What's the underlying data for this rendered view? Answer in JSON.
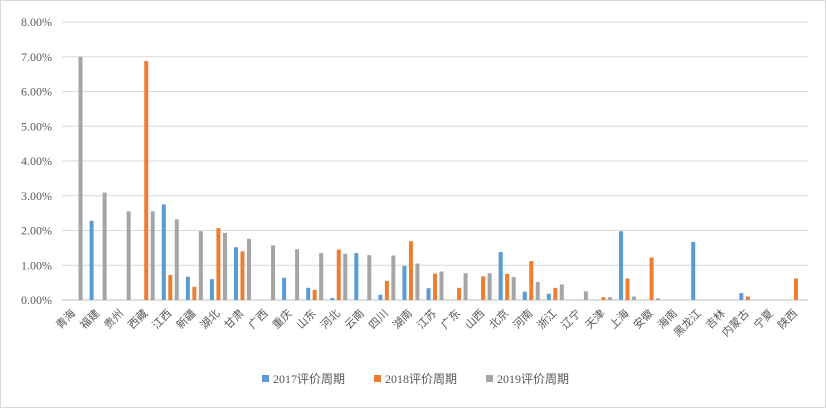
{
  "chart_data": {
    "type": "bar",
    "title": "",
    "xlabel": "",
    "ylabel": "",
    "ylim": [
      0,
      0.08
    ],
    "yticks": [
      "0.00%",
      "1.00%",
      "2.00%",
      "3.00%",
      "4.00%",
      "5.00%",
      "6.00%",
      "7.00%",
      "8.00%"
    ],
    "grid": true,
    "legend_position": "bottom",
    "categories": [
      "青海",
      "福建",
      "贵州",
      "西藏",
      "江西",
      "新疆",
      "湖北",
      "甘肃",
      "广西",
      "重庆",
      "山东",
      "河北",
      "云南",
      "四川",
      "湖南",
      "江苏",
      "广东",
      "山西",
      "北京",
      "河南",
      "浙江",
      "辽宁",
      "天津",
      "上海",
      "安徽",
      "海南",
      "黑龙江",
      "吉林",
      "内蒙古",
      "宁夏",
      "陕西"
    ],
    "series": [
      {
        "name": "2017评价周期",
        "color": "#5b9bd5",
        "values": [
          0,
          0.0228,
          0,
          0,
          0.0275,
          0.0067,
          0.006,
          0.0152,
          0,
          0.0064,
          0.0035,
          0.0006,
          0.0135,
          0.0015,
          0.0098,
          0.0034,
          0,
          0,
          0.0138,
          0.0024,
          0.0018,
          0,
          0,
          0.0198,
          0,
          0,
          0.0167,
          0,
          0.002,
          0,
          0
        ]
      },
      {
        "name": "2018评价周期",
        "color": "#ed7d31",
        "values": [
          0,
          0,
          0,
          0.0688,
          0.0072,
          0.0038,
          0.0207,
          0.014,
          0,
          0,
          0.0029,
          0.0145,
          0,
          0.0055,
          0.0169,
          0.0076,
          0.0035,
          0.0068,
          0.0075,
          0.0112,
          0.0035,
          0,
          0.0008,
          0.0062,
          0.0122,
          0,
          0,
          0,
          0.001,
          0,
          0.0062
        ]
      },
      {
        "name": "2019评价周期",
        "color": "#a5a5a5",
        "values": [
          0.07,
          0.0309,
          0.0255,
          0.0255,
          0.0232,
          0.0198,
          0.0193,
          0.0176,
          0.0157,
          0.0146,
          0.0135,
          0.0133,
          0.0129,
          0.0128,
          0.0105,
          0.0082,
          0.0077,
          0.0077,
          0.0066,
          0.0052,
          0.0045,
          0.0025,
          0.0008,
          0.001,
          0.0005,
          0,
          0,
          0,
          0,
          0,
          0
        ]
      }
    ]
  }
}
